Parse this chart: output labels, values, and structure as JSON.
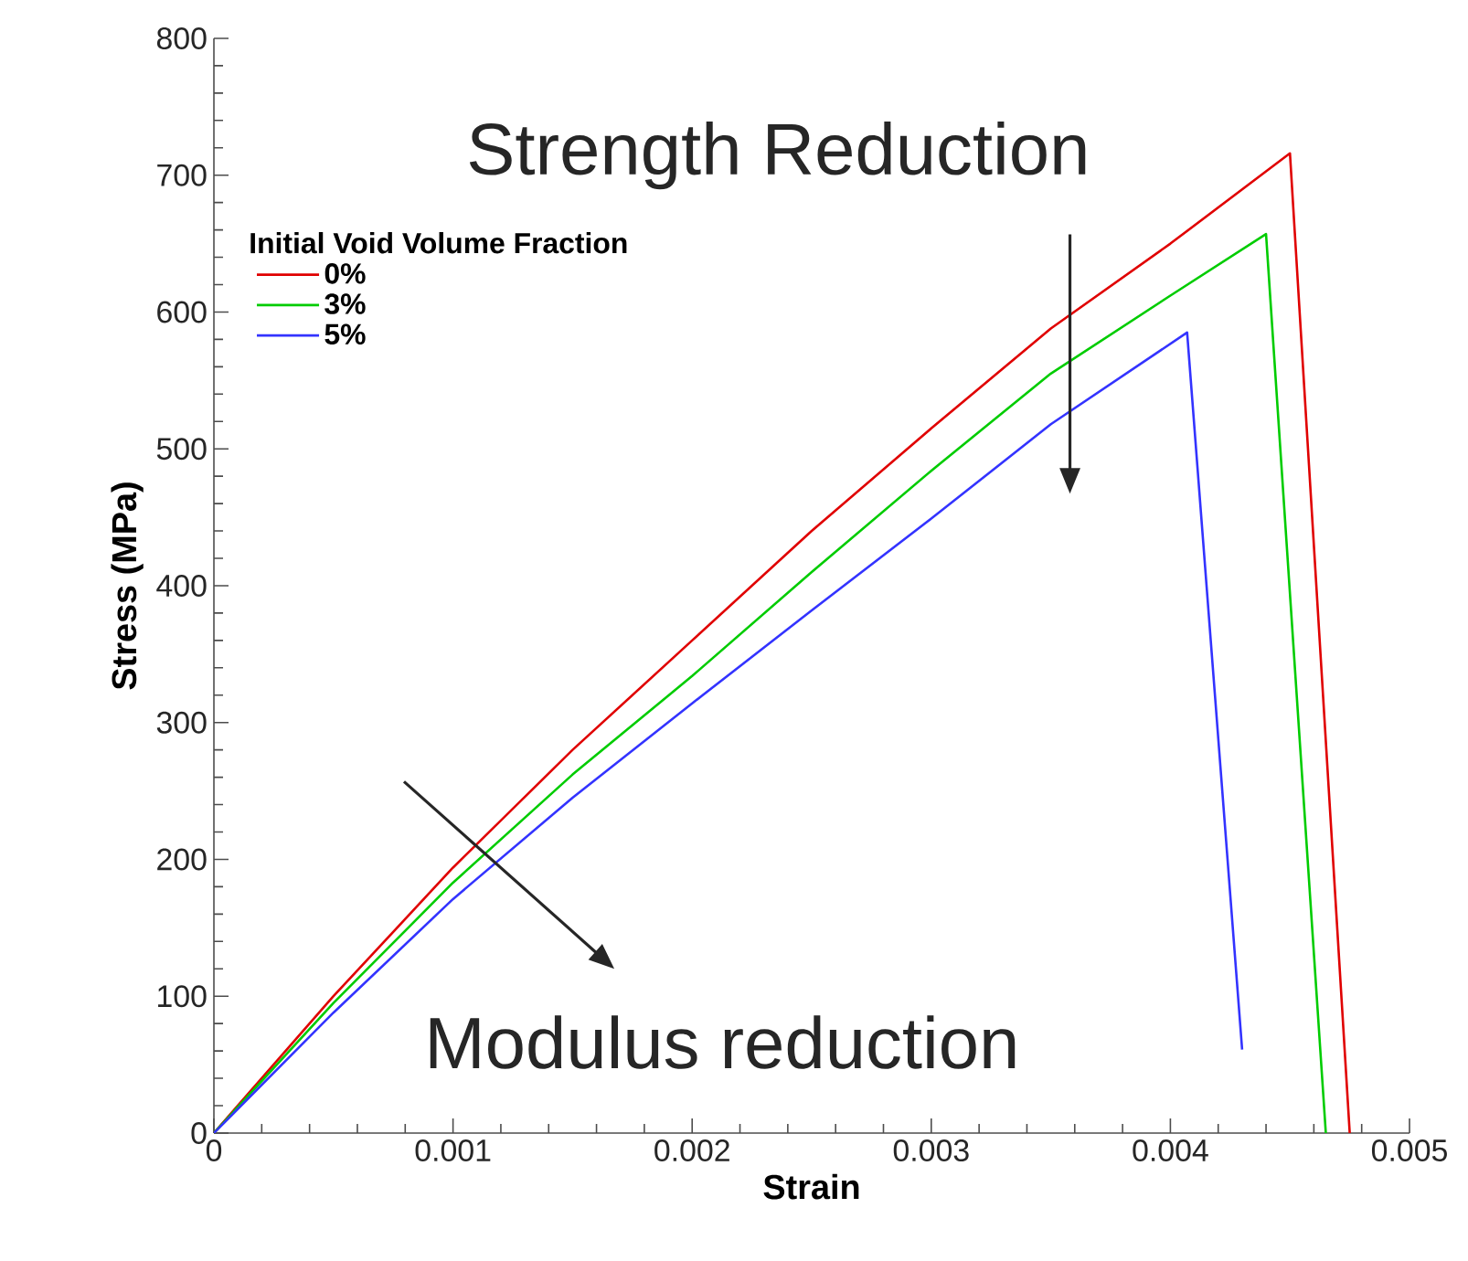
{
  "chart_data": {
    "type": "line",
    "xlabel": "Strain",
    "ylabel": "Stress (MPa)",
    "legend_title": "Initial Void Volume Fraction",
    "legend": "top left",
    "marker": "none",
    "line_style": "solid",
    "grid": false,
    "xlim": [
      0,
      0.005
    ],
    "ylim": [
      0,
      800
    ],
    "xticks": [
      0,
      0.001,
      0.002,
      0.003,
      0.004,
      0.005
    ],
    "yticks": [
      0,
      100,
      200,
      300,
      400,
      500,
      600,
      700,
      800
    ],
    "annotations": [
      "Strength Reduction",
      "Modulus reduction"
    ],
    "series": [
      {
        "name": "0%",
        "color": "#e00000",
        "x": [
          0,
          0.0005,
          0.001,
          0.0015,
          0.002,
          0.0025,
          0.003,
          0.0035,
          0.004,
          0.0045,
          0.00475
        ],
        "values": [
          0,
          100,
          194,
          280,
          360,
          440,
          515,
          588,
          650,
          716,
          0
        ]
      },
      {
        "name": "3%",
        "color": "#00cc00",
        "x": [
          0,
          0.0005,
          0.001,
          0.0015,
          0.002,
          0.0025,
          0.003,
          0.0035,
          0.004,
          0.0044,
          0.00465
        ],
        "values": [
          0,
          95,
          183,
          262,
          334,
          410,
          484,
          555,
          612,
          657,
          0
        ]
      },
      {
        "name": "5%",
        "color": "#3333ff",
        "x": [
          0,
          0.0005,
          0.001,
          0.0015,
          0.002,
          0.0025,
          0.003,
          0.0035,
          0.00407,
          0.0043
        ],
        "values": [
          0,
          88,
          171,
          245,
          314,
          382,
          449,
          518,
          585,
          61
        ]
      }
    ]
  }
}
